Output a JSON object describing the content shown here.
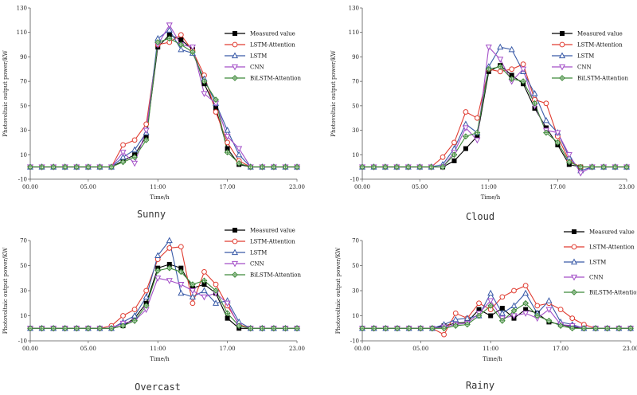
{
  "chart_data": [
    {
      "type": "line",
      "title": "Sunny",
      "xlabel": "Time/h",
      "ylabel": "Photovoltaic output power/KW",
      "xlim": [
        0,
        23
      ],
      "ylim": [
        -10,
        130
      ],
      "xticks": [
        "00.00",
        "05.00",
        "11:00",
        "17.00",
        "23.00"
      ],
      "yticks": [
        -10,
        10,
        30,
        50,
        70,
        90,
        110,
        130
      ],
      "x": [
        0,
        1,
        2,
        3,
        4,
        5,
        6,
        7,
        8,
        9,
        10,
        11,
        12,
        13,
        14,
        15,
        16,
        17,
        18,
        19,
        20,
        21,
        22,
        23
      ],
      "series": [
        {
          "name": "Measured value",
          "values": [
            0,
            0,
            0,
            0,
            0,
            0,
            0,
            0,
            5,
            10,
            25,
            98,
            108,
            104,
            96,
            68,
            48,
            15,
            2,
            0,
            0,
            0,
            0,
            0
          ]
        },
        {
          "name": "LSTM-Attention",
          "values": [
            0,
            0,
            0,
            0,
            0,
            0,
            0,
            0,
            18,
            22,
            35,
            100,
            102,
            108,
            95,
            75,
            45,
            20,
            5,
            0,
            0,
            0,
            0,
            0
          ]
        },
        {
          "name": "LSTM",
          "values": [
            0,
            0,
            0,
            0,
            0,
            0,
            0,
            0,
            8,
            14,
            28,
            105,
            112,
            96,
            93,
            72,
            52,
            30,
            10,
            0,
            0,
            0,
            0,
            0
          ]
        },
        {
          "name": "CNN",
          "values": [
            0,
            0,
            0,
            0,
            0,
            0,
            0,
            0,
            12,
            3,
            30,
            100,
            116,
            100,
            98,
            60,
            52,
            25,
            15,
            0,
            0,
            0,
            0,
            0
          ]
        },
        {
          "name": "BiLSTM-Attention",
          "values": [
            0,
            0,
            0,
            0,
            0,
            0,
            0,
            0,
            4,
            8,
            22,
            102,
            105,
            100,
            94,
            70,
            55,
            12,
            3,
            0,
            0,
            0,
            0,
            0
          ]
        }
      ],
      "caption": "Sunny"
    },
    {
      "type": "line",
      "title": "Cloud",
      "xlabel": "Time/h",
      "ylabel": "Photovoltaic output power/KW",
      "xlim": [
        0,
        23
      ],
      "ylim": [
        -10,
        130
      ],
      "xticks": [
        "00.00",
        "05.00",
        "11:00",
        "17.00",
        "23.00"
      ],
      "yticks": [
        -10,
        10,
        30,
        50,
        70,
        90,
        110,
        130
      ],
      "x": [
        0,
        1,
        2,
        3,
        4,
        5,
        6,
        7,
        8,
        9,
        10,
        11,
        12,
        13,
        14,
        15,
        16,
        17,
        18,
        19,
        20,
        21,
        22,
        23
      ],
      "series": [
        {
          "name": "Measured value",
          "values": [
            0,
            0,
            0,
            0,
            0,
            0,
            0,
            0,
            5,
            15,
            25,
            78,
            83,
            75,
            68,
            48,
            32,
            18,
            2,
            0,
            0,
            0,
            0,
            0
          ]
        },
        {
          "name": "LSTM-Attention",
          "values": [
            0,
            0,
            0,
            0,
            0,
            0,
            0,
            8,
            20,
            45,
            40,
            80,
            78,
            80,
            84,
            55,
            52,
            25,
            5,
            0,
            0,
            0,
            0,
            0
          ]
        },
        {
          "name": "LSTM",
          "values": [
            0,
            0,
            0,
            0,
            0,
            0,
            0,
            2,
            15,
            35,
            28,
            82,
            98,
            96,
            78,
            60,
            38,
            28,
            8,
            -3,
            0,
            0,
            0,
            0
          ]
        },
        {
          "name": "CNN",
          "values": [
            0,
            0,
            0,
            0,
            0,
            0,
            0,
            0,
            12,
            32,
            22,
            98,
            88,
            70,
            80,
            50,
            30,
            28,
            10,
            -5,
            0,
            0,
            0,
            0
          ]
        },
        {
          "name": "BiLSTM-Attention",
          "values": [
            0,
            0,
            0,
            0,
            0,
            0,
            0,
            0,
            10,
            25,
            28,
            80,
            82,
            72,
            70,
            52,
            28,
            20,
            4,
            0,
            0,
            0,
            0,
            0
          ]
        }
      ],
      "caption": "Cloud"
    },
    {
      "type": "line",
      "title": "Overcast",
      "xlabel": "Time/h",
      "ylabel": "Photovoltaic output power/KW",
      "xlim": [
        0,
        23
      ],
      "ylim": [
        -10,
        70
      ],
      "xticks": [
        "00.00",
        "05.00",
        "11:00",
        "17.00",
        "23.00"
      ],
      "yticks": [
        -10,
        10,
        30,
        50,
        70
      ],
      "x": [
        0,
        1,
        2,
        3,
        4,
        5,
        6,
        7,
        8,
        9,
        10,
        11,
        12,
        13,
        14,
        15,
        16,
        17,
        18,
        19,
        20,
        21,
        22,
        23
      ],
      "series": [
        {
          "name": "Measured value",
          "values": [
            0,
            0,
            0,
            0,
            0,
            0,
            0,
            0,
            2,
            8,
            20,
            48,
            51,
            48,
            32,
            35,
            28,
            8,
            0,
            0,
            0,
            0,
            0,
            0
          ]
        },
        {
          "name": "LSTM-Attention",
          "values": [
            0,
            0,
            0,
            0,
            0,
            0,
            0,
            2,
            10,
            15,
            30,
            55,
            64,
            65,
            20,
            45,
            35,
            18,
            3,
            0,
            0,
            0,
            0,
            0
          ]
        },
        {
          "name": "LSTM",
          "values": [
            0,
            0,
            0,
            0,
            0,
            0,
            0,
            0,
            5,
            10,
            25,
            58,
            70,
            28,
            25,
            30,
            20,
            22,
            5,
            0,
            0,
            0,
            0,
            0
          ]
        },
        {
          "name": "CNN",
          "values": [
            0,
            0,
            0,
            0,
            0,
            0,
            0,
            0,
            4,
            6,
            15,
            40,
            38,
            35,
            30,
            25,
            28,
            20,
            2,
            0,
            0,
            0,
            0,
            0
          ]
        },
        {
          "name": "BiLSTM-Attention",
          "values": [
            0,
            0,
            0,
            0,
            0,
            0,
            0,
            0,
            2,
            6,
            18,
            46,
            48,
            45,
            35,
            38,
            30,
            12,
            2,
            0,
            0,
            0,
            0,
            0
          ]
        }
      ],
      "caption": "Overcast"
    },
    {
      "type": "line",
      "title": "Rainy",
      "xlabel": "Time/h",
      "ylabel": "Photovoltaic output power/KW",
      "xlim": [
        0,
        23
      ],
      "ylim": [
        -10,
        70
      ],
      "xticks": [
        "00.00",
        "05.00",
        "11:00",
        "17.00",
        "23.00"
      ],
      "yticks": [
        -10,
        10,
        30,
        50,
        70
      ],
      "x": [
        0,
        1,
        2,
        3,
        4,
        5,
        6,
        7,
        8,
        9,
        10,
        11,
        12,
        13,
        14,
        15,
        16,
        17,
        18,
        19,
        20,
        21,
        22,
        23
      ],
      "series": [
        {
          "name": "Measured value",
          "values": [
            0,
            0,
            0,
            0,
            0,
            0,
            0,
            2,
            4,
            5,
            15,
            10,
            16,
            8,
            15,
            12,
            5,
            3,
            1,
            0,
            0,
            0,
            0,
            0
          ]
        },
        {
          "name": "LSTM-Attention",
          "values": [
            0,
            0,
            0,
            0,
            0,
            0,
            0,
            -5,
            12,
            8,
            20,
            15,
            25,
            30,
            34,
            18,
            20,
            15,
            8,
            3,
            0,
            0,
            0,
            0
          ]
        },
        {
          "name": "LSTM",
          "values": [
            0,
            0,
            0,
            0,
            0,
            0,
            0,
            3,
            7,
            8,
            10,
            28,
            12,
            18,
            28,
            12,
            22,
            5,
            3,
            0,
            0,
            0,
            0,
            0
          ]
        },
        {
          "name": "CNN",
          "values": [
            0,
            0,
            0,
            0,
            0,
            0,
            0,
            1,
            3,
            4,
            12,
            22,
            8,
            10,
            12,
            8,
            15,
            3,
            2,
            0,
            0,
            0,
            0,
            0
          ]
        },
        {
          "name": "BiLSTM-Attention",
          "values": [
            0,
            0,
            0,
            0,
            0,
            0,
            0,
            0,
            2,
            3,
            10,
            18,
            6,
            14,
            20,
            10,
            6,
            2,
            0,
            0,
            0,
            0,
            0,
            0
          ]
        }
      ],
      "caption": "Rainy"
    }
  ],
  "series_styles": [
    {
      "name": "Measured value",
      "color": "#000000",
      "marker": "square-filled"
    },
    {
      "name": "LSTM-Attention",
      "color": "#e03c31",
      "marker": "circle-open"
    },
    {
      "name": "LSTM",
      "color": "#3a5ba8",
      "marker": "triangle-up-open"
    },
    {
      "name": "CNN",
      "color": "#a34fc8",
      "marker": "triangle-down-open"
    },
    {
      "name": "BiLSTM-Attention",
      "color": "#3f8a3a",
      "marker": "diamond-cross"
    }
  ]
}
